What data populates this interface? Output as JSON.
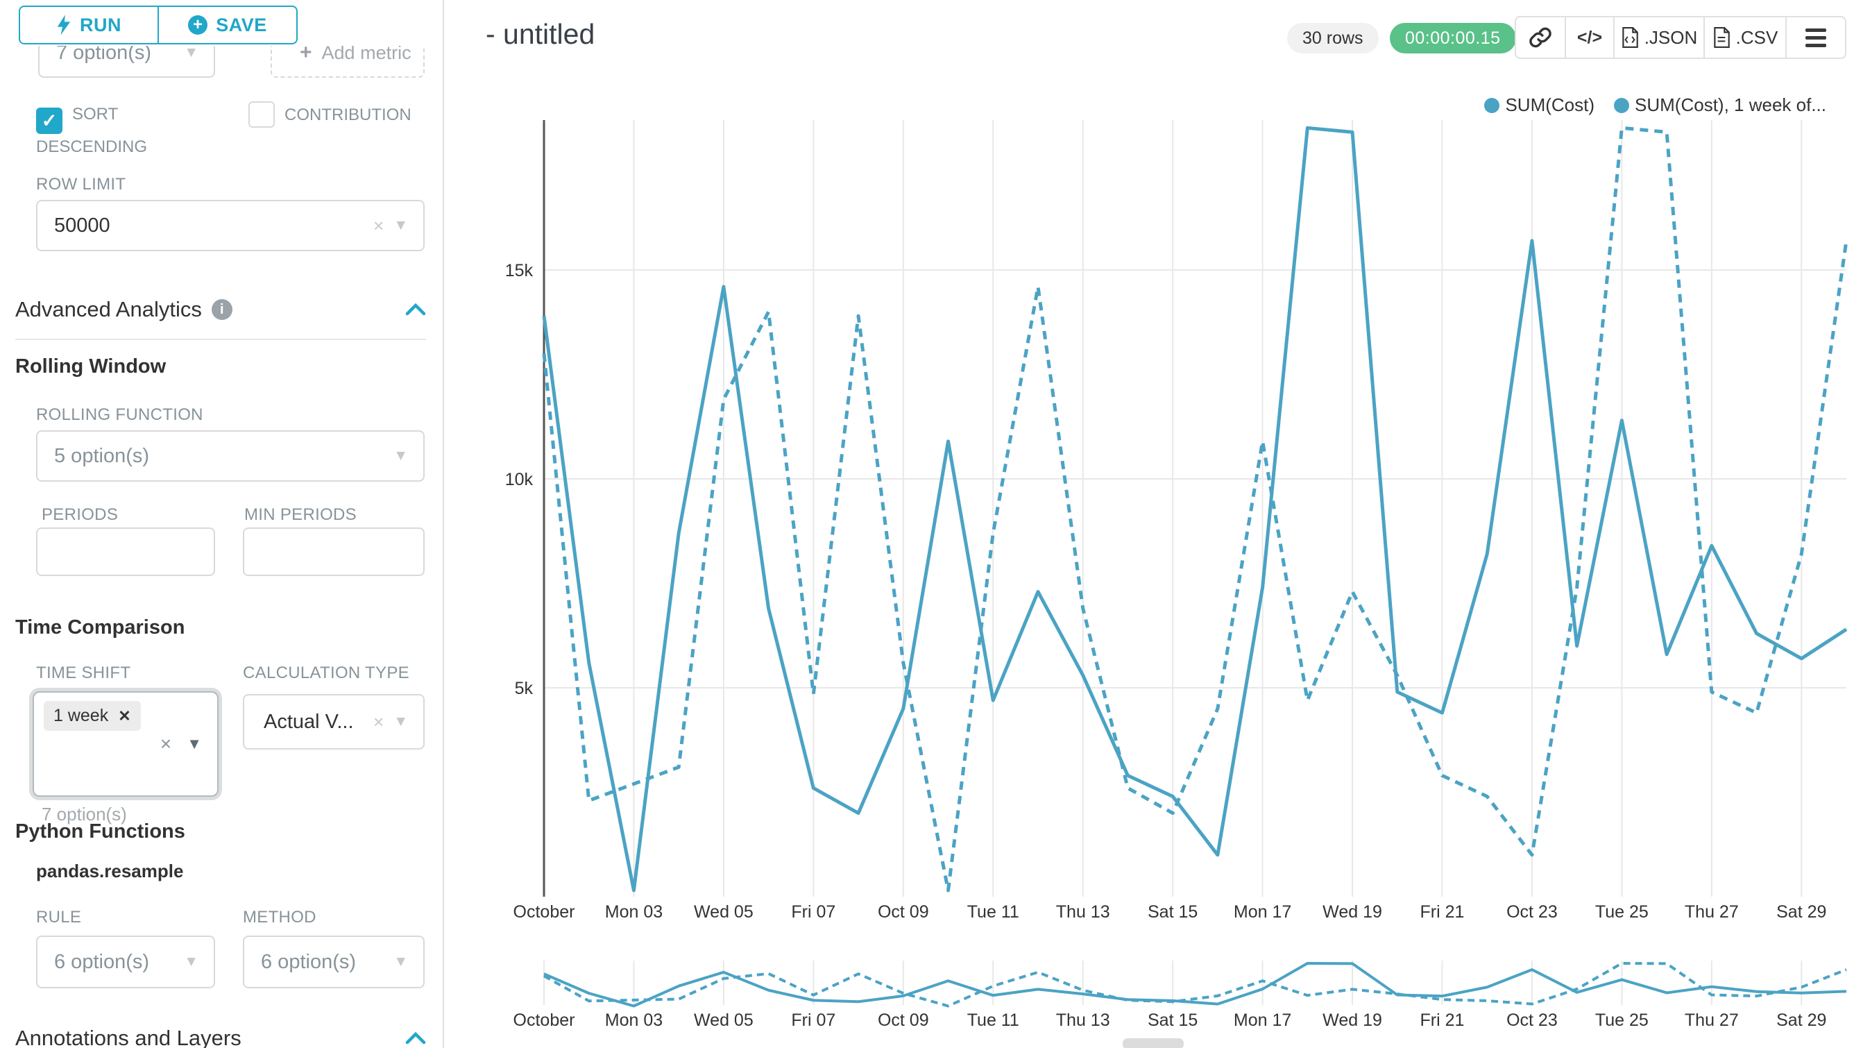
{
  "colors": {
    "accent": "#20a7c9",
    "line": "#4ba3c4",
    "success": "#5ac189",
    "text_dark": "#323232",
    "label_gray": "#879399"
  },
  "icons": {
    "caret_down": "▼",
    "clear": "×",
    "tag_close": "✕",
    "check": "✓",
    "plus": "+",
    "code": "</>",
    "info": "i"
  },
  "sidebar": {
    "run_label": "RUN",
    "save_label": "SAVE",
    "groupby_value": "7 option(s)",
    "add_metric_label": "Add metric",
    "sort_descending_label": "SORT DESCENDING",
    "contribution_label": "CONTRIBUTION",
    "row_limit_label": "ROW LIMIT",
    "row_limit_value": "50000",
    "advanced_analytics_title": "Advanced Analytics",
    "rolling_window_title": "Rolling Window",
    "rolling_function_label": "ROLLING FUNCTION",
    "rolling_function_value": "5 option(s)",
    "periods_label": "PERIODS",
    "min_periods_label": "MIN PERIODS",
    "time_comparison_title": "Time Comparison",
    "time_shift_label": "TIME SHIFT",
    "time_shift_tag": "1 week",
    "time_shift_helper": "7 option(s)",
    "calculation_type_label": "CALCULATION TYPE",
    "calculation_type_value": "Actual V...",
    "python_functions_title": "Python Functions",
    "pandas_resample_label": "pandas.resample",
    "rule_label": "RULE",
    "rule_value": "6 option(s)",
    "method_label": "METHOD",
    "method_value": "6 option(s)",
    "annotations_title": "Annotations and Layers"
  },
  "header": {
    "title": "- untitled",
    "rows_badge": "30 rows",
    "timer_badge": "00:00:00.15",
    "json_label": ".JSON",
    "csv_label": ".CSV"
  },
  "chart_data": {
    "type": "line",
    "title": "- untitled",
    "xlabel": "",
    "ylabel": "",
    "ylim": [
      0,
      18600
    ],
    "grid": true,
    "legend_position": "top-right",
    "line_color": "#4ba3c4",
    "legend": [
      "SUM(Cost)",
      "SUM(Cost), 1 week of..."
    ],
    "x_tick_labels": [
      "October",
      "Mon 03",
      "Wed 05",
      "Fri 07",
      "Oct 09",
      "Tue 11",
      "Thu 13",
      "Sat 15",
      "Mon 17",
      "Wed 19",
      "Fri 21",
      "Oct 23",
      "Tue 25",
      "Thu 27",
      "Sat 29"
    ],
    "x_tick_positions": [
      0,
      2,
      4,
      6,
      8,
      10,
      12,
      14,
      16,
      18,
      20,
      22,
      24,
      26,
      28
    ],
    "y_ticks": [
      {
        "value": 5000,
        "label": "5k"
      },
      {
        "value": 10000,
        "label": "10k"
      },
      {
        "value": 15000,
        "label": "15k"
      }
    ],
    "series": [
      {
        "name": "SUM(Cost)",
        "style": "solid",
        "values": [
          13900,
          5600,
          150,
          8700,
          14600,
          6900,
          2600,
          2000,
          4500,
          10900,
          4700,
          7300,
          5300,
          2900,
          2400,
          1000,
          7400,
          18400,
          18300,
          4900,
          4400,
          8200,
          15700,
          6000,
          11400,
          5800,
          8400,
          6300,
          5700,
          6400
        ]
      },
      {
        "name": "SUM(Cost), 1 week of...",
        "style": "dashed",
        "values": [
          13000,
          2300,
          2700,
          3100,
          11900,
          14000,
          4850,
          13900,
          5600,
          150,
          8700,
          14600,
          6900,
          2600,
          2000,
          4500,
          10900,
          4700,
          7300,
          5300,
          2900,
          2400,
          1000,
          7400,
          18400,
          18300,
          4900,
          4400,
          8200,
          15700
        ]
      }
    ]
  }
}
